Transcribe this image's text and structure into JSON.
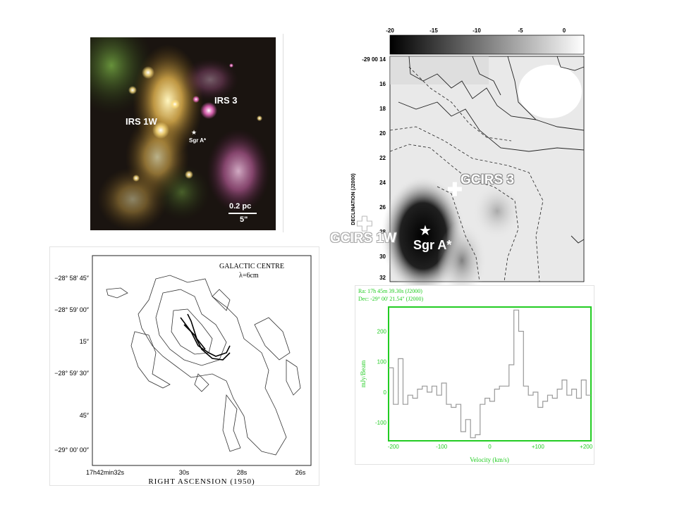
{
  "colors": {
    "background": "#ffffff",
    "spectrum_green": "#22cc22",
    "spectrum_line": "#9a9a9a"
  },
  "panel_ir": {
    "labels": {
      "irs3": "IRS 3",
      "irs1w": "IRS 1W",
      "sgra": "Sgr A*",
      "scale_pc": "0.2 pc",
      "scale_arcsec": "5\""
    }
  },
  "panel_gray": {
    "colorbar_ticks": [
      "-20",
      "-15",
      "-10",
      "-5",
      "0"
    ],
    "dec_ticks": [
      "-29 00 14",
      "16",
      "18",
      "20",
      "22",
      "24",
      "26",
      "28",
      "30",
      "32"
    ],
    "ylabel": "DECLINATION (J2000)",
    "labels": {
      "gcirs3": "GCIRS 3",
      "gcirs1w": "GCIRS 1W",
      "sgra": "Sgr A*"
    }
  },
  "panel_radio": {
    "title_line1": "GALACTIC CENTRE",
    "title_line2": "λ=6cm",
    "y_ticks": [
      "−28° 58′ 45″",
      "−28° 59′ 00″",
      "15″",
      "−28° 59′ 30″",
      "45″",
      "−29° 00′ 00″"
    ],
    "x_ticks": [
      "17h42min32s",
      "30s",
      "28s",
      "26s"
    ],
    "xlabel": "RIGHT ASCENSION (1950)"
  },
  "panel_spectrum": {
    "header_ra": "Ra: 17h 45m 39.30s (J2000)",
    "header_dec": "Dec: -29° 00' 21.54\" (J2000)",
    "ylabel": "mJy/Beam",
    "xlabel": "Velocity (km/s)",
    "y_ticks": [
      "200",
      "100",
      "0",
      "-100"
    ],
    "x_ticks": [
      "-200",
      "-100",
      "0",
      "+100",
      "+200"
    ]
  },
  "chart_data": {
    "type": "line",
    "xlabel": "Velocity (km/s)",
    "ylabel": "mJy/Beam",
    "xlim": [
      -210,
      210
    ],
    "ylim": [
      -160,
      280
    ],
    "x": [
      -205,
      -195,
      -185,
      -175,
      -165,
      -155,
      -145,
      -135,
      -125,
      -115,
      -105,
      -95,
      -85,
      -75,
      -65,
      -55,
      -45,
      -35,
      -25,
      -15,
      -5,
      5,
      15,
      25,
      35,
      45,
      55,
      65,
      75,
      85,
      95,
      105,
      115,
      125,
      135,
      145,
      155,
      165,
      175,
      185,
      195,
      205
    ],
    "series": [
      {
        "values": [
          80,
          -40,
          110,
          -40,
          -10,
          -20,
          10,
          20,
          0,
          20,
          -10,
          30,
          -40,
          -50,
          -40,
          -130,
          -90,
          -150,
          -140,
          -40,
          -20,
          -30,
          10,
          20,
          20,
          90,
          270,
          200,
          20,
          -10,
          0,
          -50,
          -30,
          -10,
          -20,
          10,
          40,
          -10,
          10,
          -20,
          40,
          -10
        ]
      }
    ]
  }
}
